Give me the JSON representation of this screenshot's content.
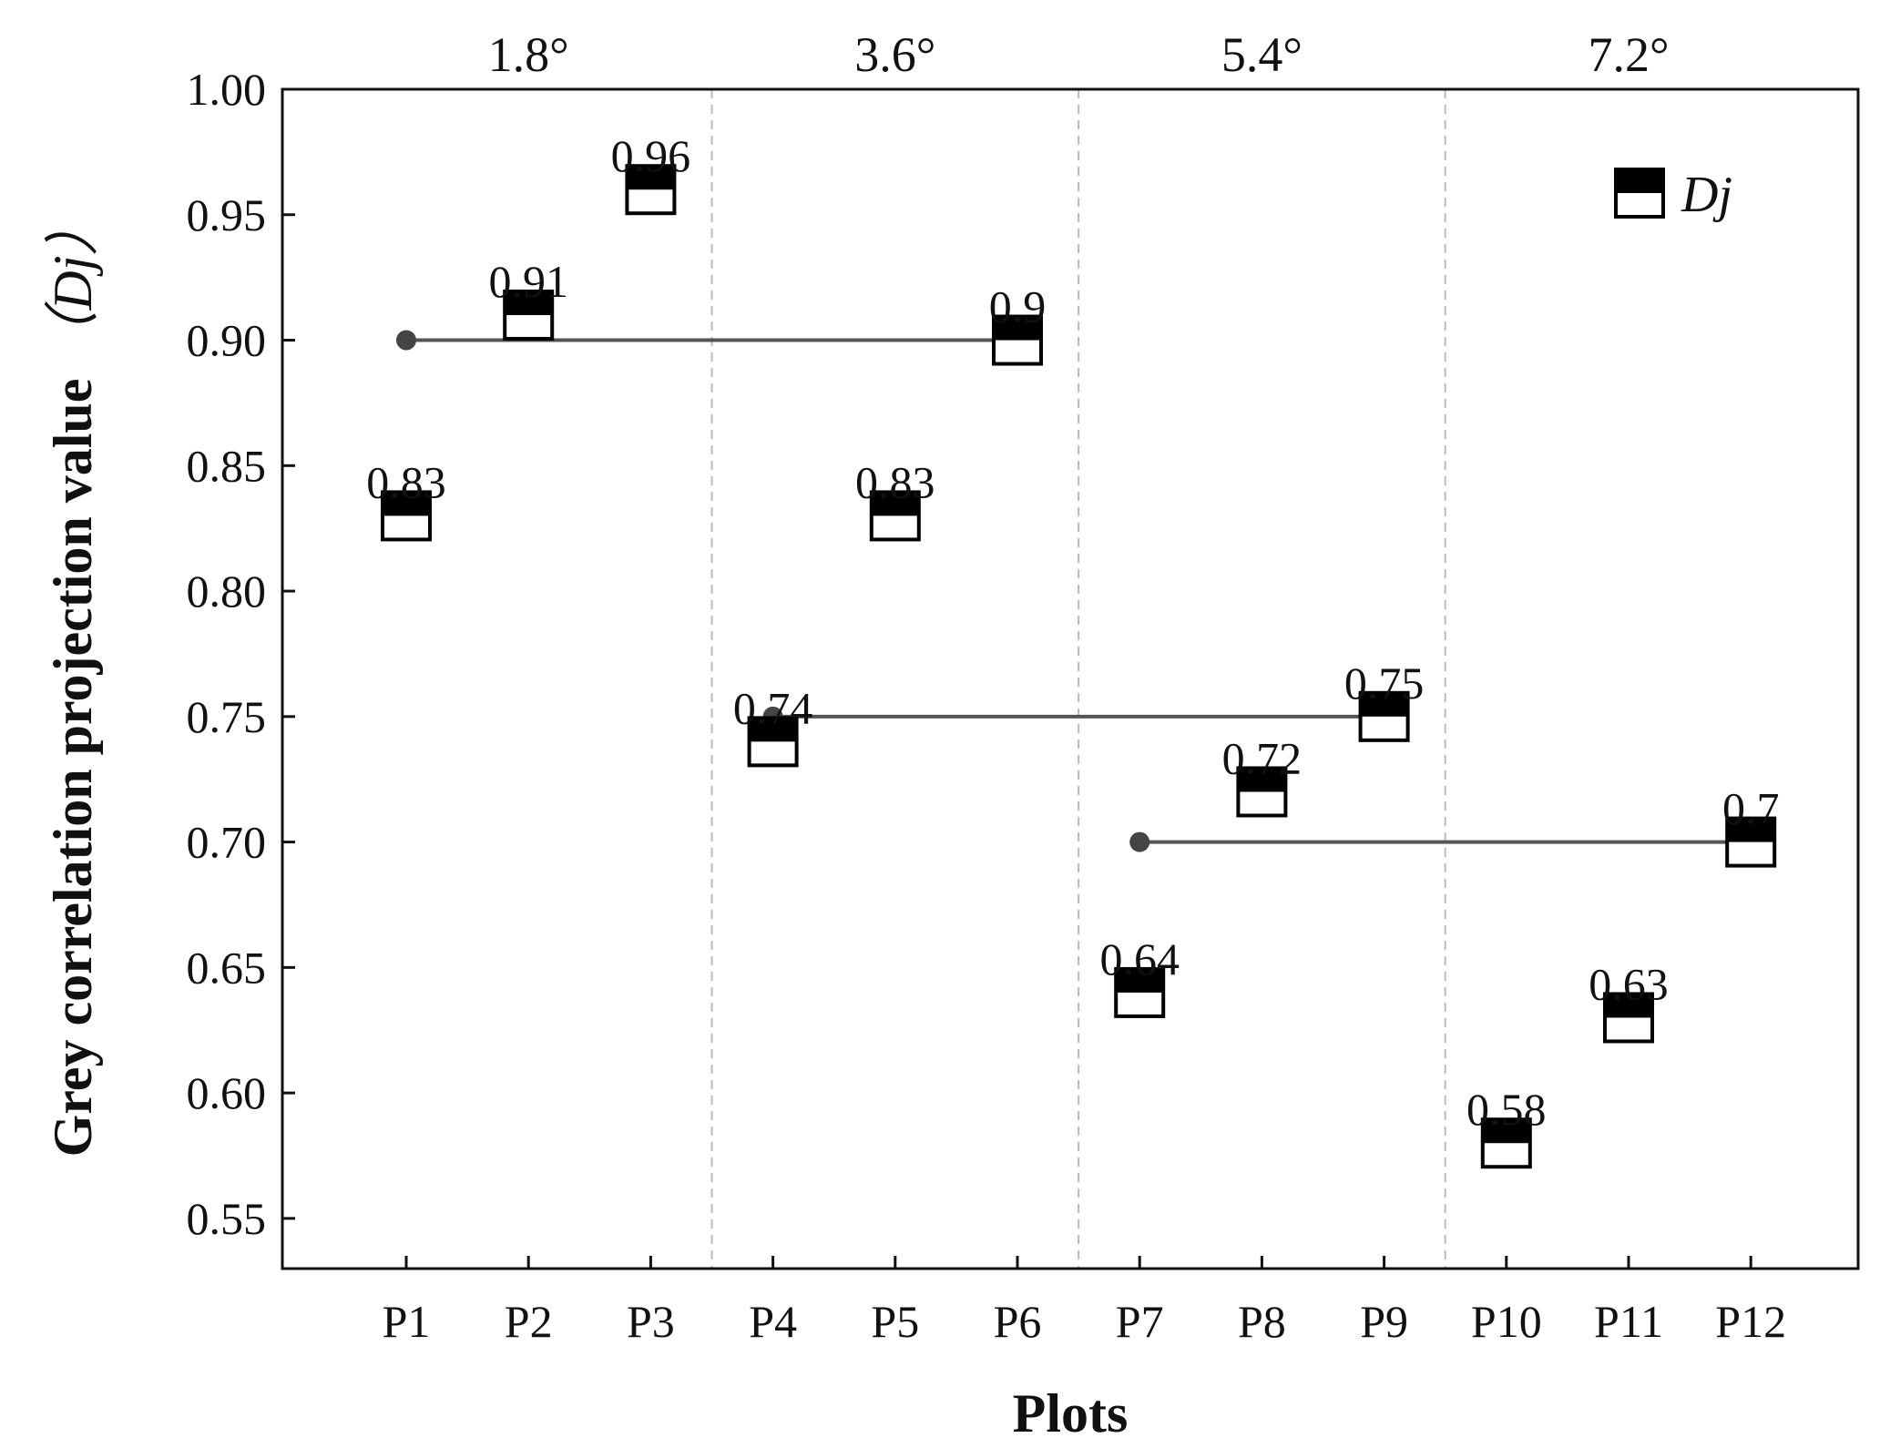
{
  "chart_data": {
    "type": "scatter",
    "title": "",
    "xlabel": "Plots",
    "ylabel": "Grey correlation projection value",
    "ylabel_symbol": "（Dj）",
    "categories": [
      "P1",
      "P2",
      "P3",
      "P4",
      "P5",
      "P6",
      "P7",
      "P8",
      "P9",
      "P10",
      "P11",
      "P12"
    ],
    "series": [
      {
        "name": "Dj",
        "values": [
          0.83,
          0.91,
          0.96,
          0.74,
          0.83,
          0.9,
          0.64,
          0.72,
          0.75,
          0.58,
          0.63,
          0.7
        ]
      }
    ],
    "data_labels": [
      "0.83",
      "0.91",
      "0.96",
      "0.74",
      "0.83",
      "0.9",
      "0.64",
      "0.72",
      "0.75",
      "0.58",
      "0.63",
      "0.7"
    ],
    "ylim": [
      0.53,
      1.0
    ],
    "yticks": [
      0.55,
      0.6,
      0.65,
      0.7,
      0.75,
      0.8,
      0.85,
      0.9,
      0.95,
      1.0
    ],
    "ytick_labels": [
      "0.55",
      "0.60",
      "0.65",
      "0.70",
      "0.75",
      "0.80",
      "0.85",
      "0.90",
      "0.95",
      "1.00"
    ],
    "groups": [
      {
        "label": "1.8°",
        "start": 1,
        "end": 3
      },
      {
        "label": "3.6°",
        "start": 4,
        "end": 6
      },
      {
        "label": "5.4°",
        "start": 7,
        "end": 9
      },
      {
        "label": "7.2°",
        "start": 10,
        "end": 12
      }
    ],
    "reference_lines": [
      {
        "from_index": 1,
        "to_index": 6,
        "value": 0.9
      },
      {
        "from_index": 4,
        "to_index": 9,
        "value": 0.75
      },
      {
        "from_index": 7,
        "to_index": 12,
        "value": 0.7
      }
    ],
    "legend": {
      "position": "top-right",
      "label": "Dj"
    },
    "grid": false,
    "colors": {
      "axis": "#111111",
      "marker_top": "#000000",
      "marker_bottom": "#ffffff",
      "ref_line": "#555555",
      "ref_dot": "#444444",
      "separator": "#bbbbbb"
    }
  }
}
